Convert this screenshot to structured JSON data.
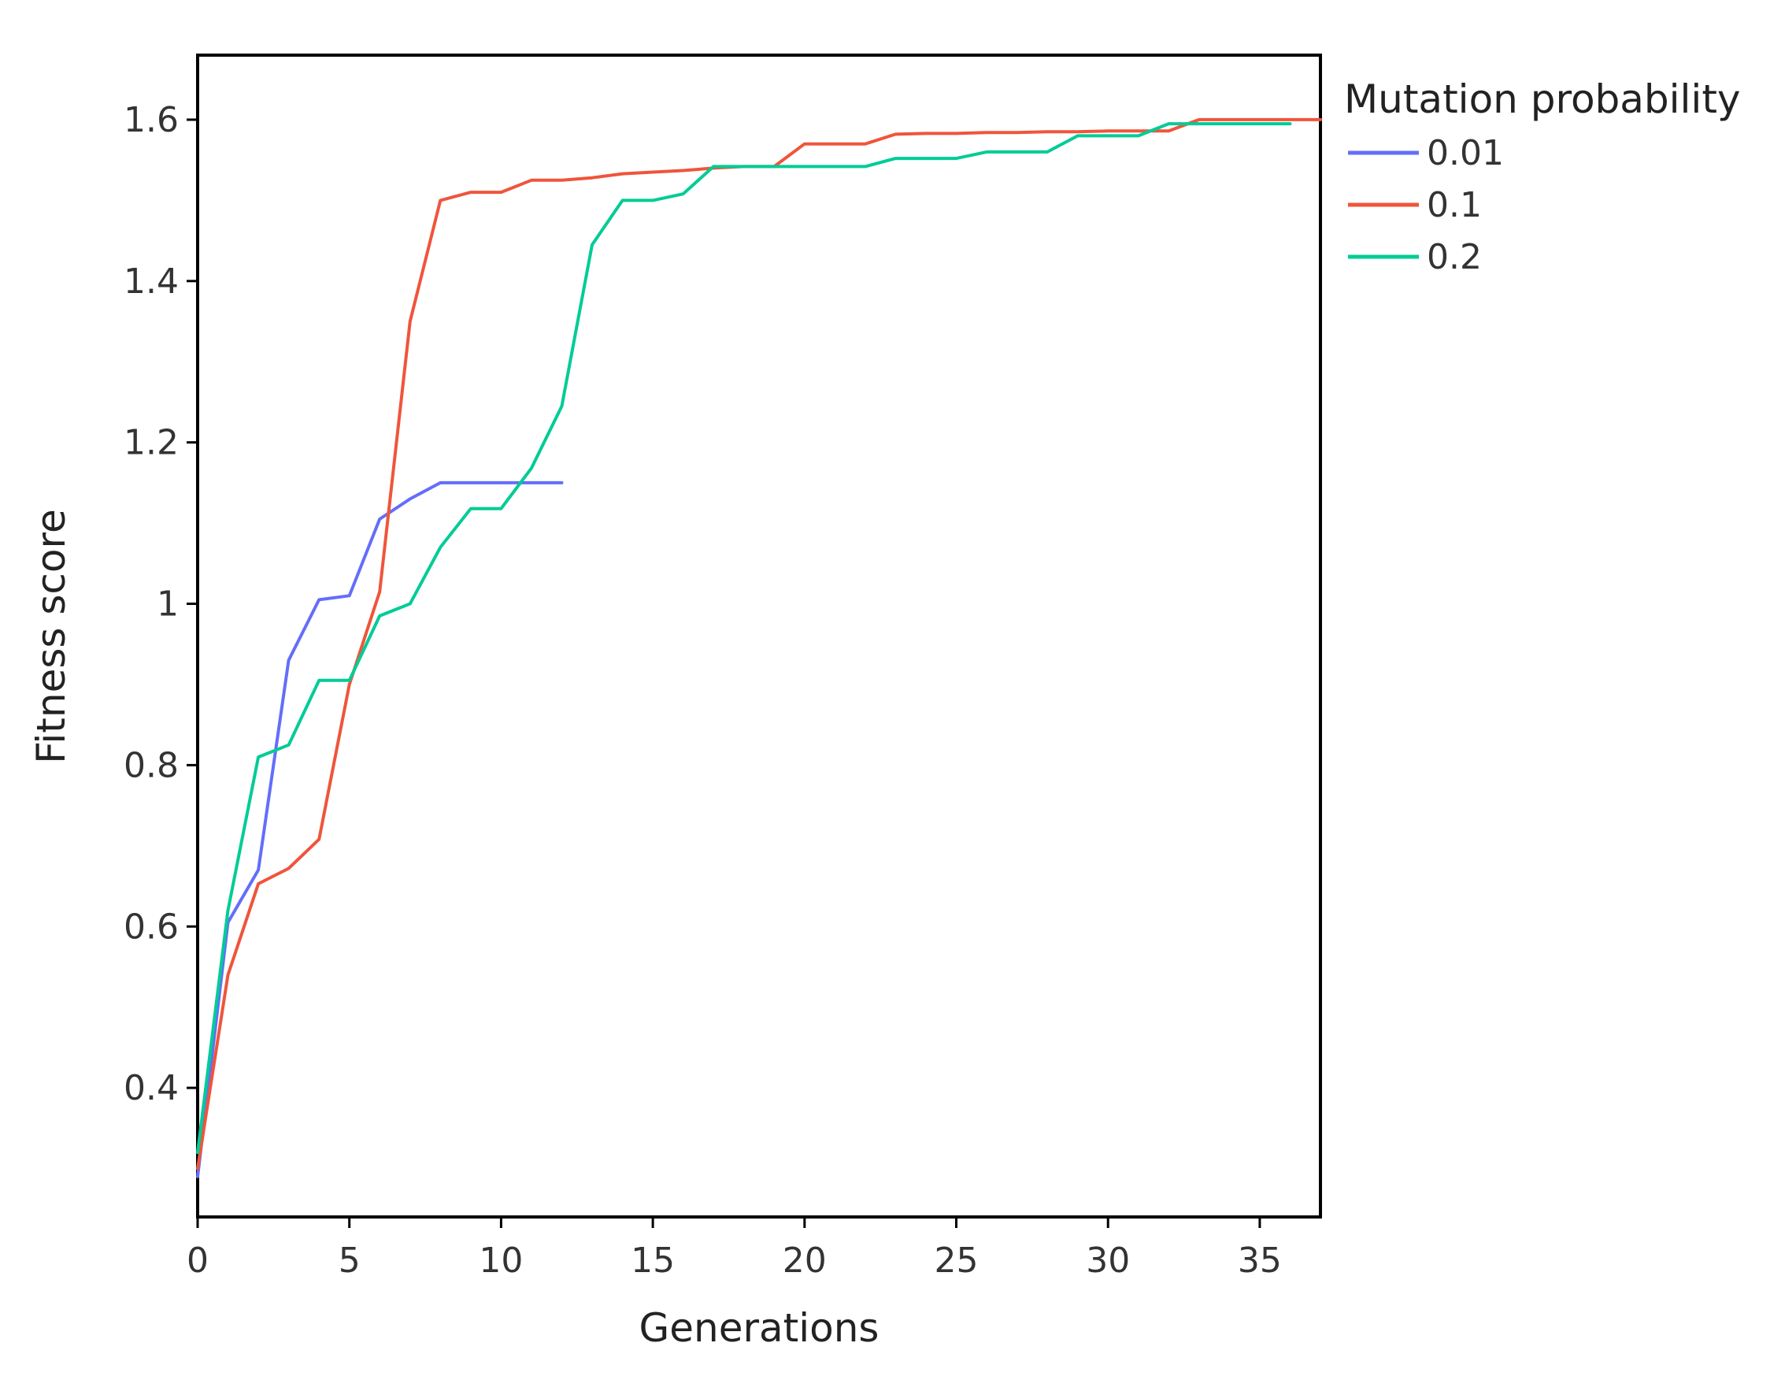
{
  "chart_data": {
    "type": "line",
    "title": "",
    "xlabel": "Generations",
    "ylabel": "Fitness score",
    "xlim": [
      0,
      37
    ],
    "ylim": [
      0.24,
      1.68
    ],
    "xticks": [
      0,
      5,
      10,
      15,
      20,
      25,
      30,
      35
    ],
    "xtick_labels": [
      "0",
      "5",
      "10",
      "15",
      "20",
      "25",
      "30",
      "35"
    ],
    "yticks": [
      0.4,
      0.6,
      0.8,
      1.0,
      1.2,
      1.4,
      1.6
    ],
    "ytick_labels": [
      "0.4",
      "0.6",
      "0.8",
      "1",
      "1.2",
      "1.4",
      "1.6"
    ],
    "grid": false,
    "legend": {
      "title": "Mutation probability",
      "placement": "right-top"
    },
    "series": [
      {
        "name": "0.01",
        "color": "#636efa",
        "x": [
          0,
          1,
          2,
          3,
          4,
          5,
          6,
          7,
          8,
          9,
          10,
          11,
          12
        ],
        "values": [
          0.29,
          0.605,
          0.67,
          0.93,
          1.005,
          1.01,
          1.105,
          1.13,
          1.15,
          1.15,
          1.15,
          1.15,
          1.15
        ]
      },
      {
        "name": "0.1",
        "color": "#ef553b",
        "x": [
          0,
          1,
          2,
          3,
          4,
          5,
          6,
          7,
          8,
          9,
          10,
          11,
          12,
          13,
          14,
          15,
          16,
          17,
          18,
          19,
          20,
          21,
          22,
          23,
          24,
          25,
          26,
          27,
          28,
          29,
          30,
          31,
          32,
          33,
          34,
          35,
          36,
          37
        ],
        "values": [
          0.3,
          0.54,
          0.653,
          0.672,
          0.708,
          0.9,
          1.015,
          1.35,
          1.5,
          1.51,
          1.51,
          1.525,
          1.525,
          1.528,
          1.533,
          1.535,
          1.537,
          1.54,
          1.542,
          1.542,
          1.57,
          1.57,
          1.57,
          1.582,
          1.583,
          1.583,
          1.584,
          1.584,
          1.585,
          1.585,
          1.586,
          1.586,
          1.586,
          1.6,
          1.6,
          1.6,
          1.6,
          1.6
        ]
      },
      {
        "name": "0.2",
        "color": "#00cc96",
        "x": [
          0,
          1,
          2,
          3,
          4,
          5,
          6,
          7,
          8,
          9,
          10,
          11,
          12,
          13,
          14,
          15,
          16,
          17,
          18,
          19,
          20,
          21,
          22,
          23,
          24,
          25,
          26,
          27,
          28,
          29,
          30,
          31,
          32,
          33,
          34,
          35,
          36
        ],
        "values": [
          0.32,
          0.62,
          0.81,
          0.825,
          0.905,
          0.905,
          0.985,
          1.0,
          1.07,
          1.118,
          1.118,
          1.168,
          1.245,
          1.445,
          1.5,
          1.5,
          1.508,
          1.542,
          1.542,
          1.542,
          1.542,
          1.542,
          1.542,
          1.552,
          1.552,
          1.552,
          1.56,
          1.56,
          1.56,
          1.58,
          1.58,
          1.58,
          1.595,
          1.595,
          1.595,
          1.595,
          1.595
        ]
      }
    ]
  }
}
